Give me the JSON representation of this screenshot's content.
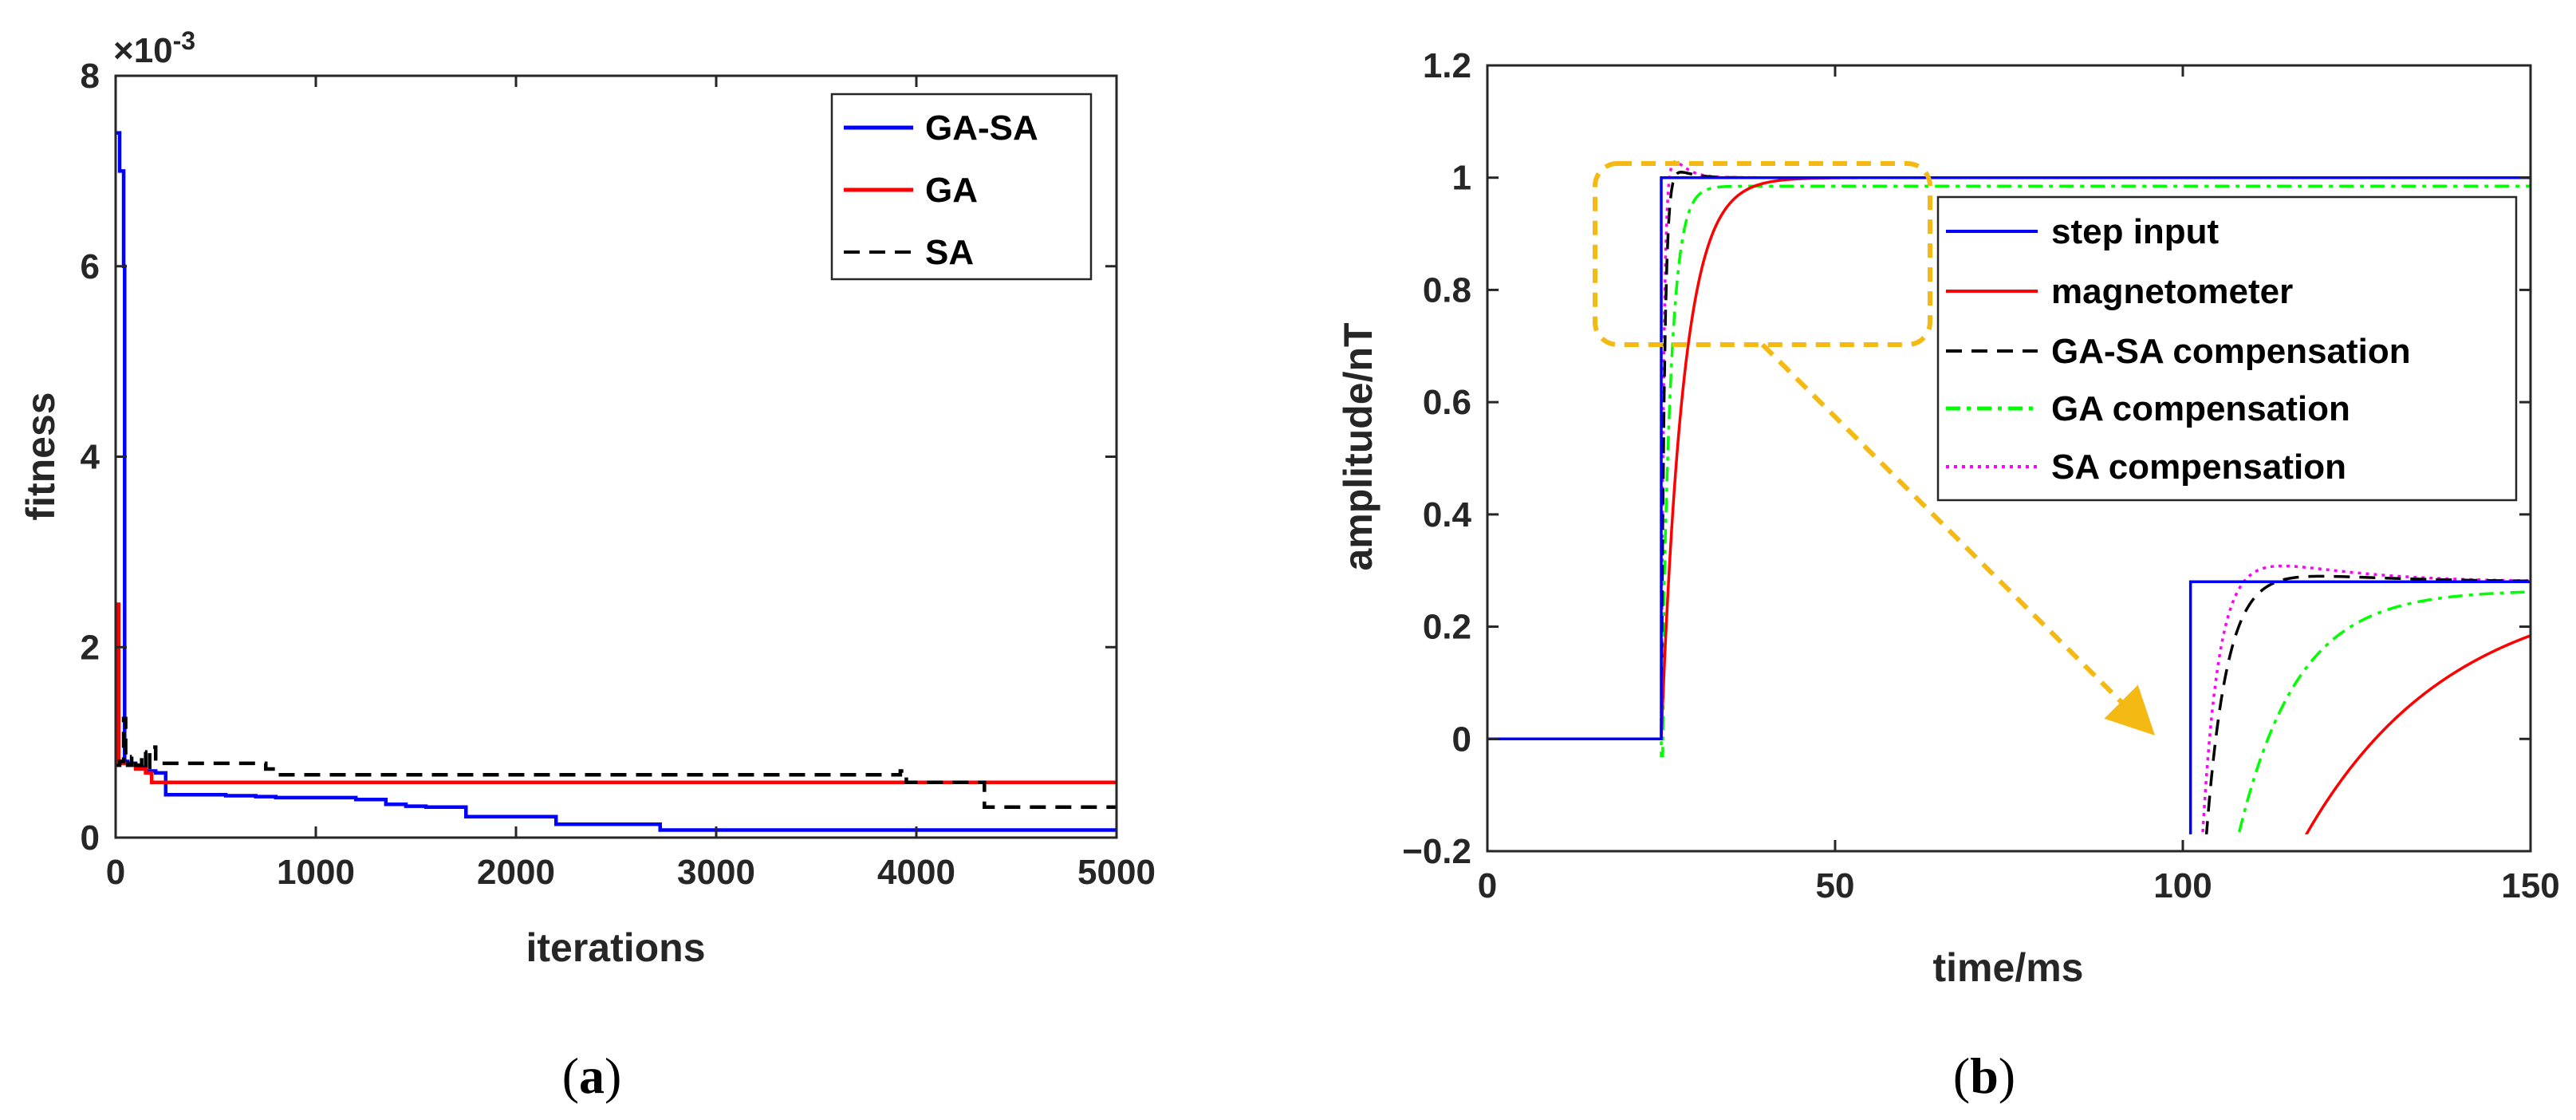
{
  "colors": {
    "blue": "#0000ff",
    "red": "#ff0000",
    "black": "#000000",
    "green": "#00ff00",
    "magenta": "#ff00ff",
    "highlight": "#f5b914",
    "axis": "#262626"
  },
  "chart_data": [
    {
      "id": "a",
      "type": "line",
      "caption_open": "(",
      "caption_letter": "a",
      "caption_close": ")",
      "title": "",
      "xlabel": "iterations",
      "ylabel": "fitness",
      "xlim": [
        0,
        5000
      ],
      "ylim": [
        0,
        8
      ],
      "exponent_label": "×10",
      "exponent_power": "-3",
      "xticks": [
        0,
        1000,
        2000,
        3000,
        4000,
        5000
      ],
      "xtick_labels": [
        "0",
        "1000",
        "2000",
        "3000",
        "4000",
        "5000"
      ],
      "yticks": [
        0,
        2,
        4,
        6,
        8
      ],
      "ytick_labels": [
        "0",
        "2",
        "4",
        "6",
        "8"
      ],
      "legend_position": "top-right",
      "series": [
        {
          "name": "GA-SA",
          "color": "blue",
          "style": "solid",
          "x": [
            0,
            20,
            40,
            45,
            60,
            100,
            150,
            200,
            240,
            250,
            400,
            550,
            700,
            800,
            1000,
            1200,
            1300,
            1350,
            1450,
            1550,
            1700,
            1750,
            2000,
            2150,
            2200,
            2500,
            2700,
            2720,
            3500,
            4000,
            4500,
            5000
          ],
          "y": [
            7.4,
            7.0,
            6.0,
            0.8,
            0.78,
            0.74,
            0.7,
            0.68,
            0.68,
            0.45,
            0.45,
            0.44,
            0.43,
            0.42,
            0.42,
            0.4,
            0.4,
            0.35,
            0.33,
            0.32,
            0.32,
            0.22,
            0.22,
            0.22,
            0.14,
            0.14,
            0.14,
            0.08,
            0.08,
            0.08,
            0.08,
            0.08
          ]
        },
        {
          "name": "GA",
          "color": "red",
          "style": "solid",
          "x": [
            0,
            10,
            15,
            30,
            60,
            100,
            150,
            180,
            250,
            500,
            1000,
            2000,
            3000,
            4000,
            5000
          ],
          "y": [
            2.45,
            2.45,
            0.8,
            0.78,
            0.76,
            0.72,
            0.68,
            0.58,
            0.58,
            0.58,
            0.58,
            0.58,
            0.58,
            0.58,
            0.58
          ]
        },
        {
          "name": "SA",
          "color": "black",
          "style": "dashed",
          "x": [
            0,
            20,
            40,
            50,
            60,
            80,
            100,
            130,
            150,
            170,
            200,
            400,
            700,
            750,
            800,
            900,
            1200,
            2000,
            3000,
            3900,
            3920,
            3950,
            4320,
            4340,
            4500,
            5000
          ],
          "y": [
            0.76,
            0.8,
            1.25,
            0.78,
            0.76,
            0.85,
            0.76,
            0.9,
            0.7,
            0.95,
            0.78,
            0.78,
            0.78,
            0.72,
            0.66,
            0.66,
            0.66,
            0.66,
            0.66,
            0.66,
            0.7,
            0.58,
            0.58,
            0.32,
            0.32,
            0.32
          ]
        }
      ]
    },
    {
      "id": "b",
      "type": "line",
      "caption_open": "(",
      "caption_letter": "b",
      "caption_close": ")",
      "title": "",
      "xlabel": "time/ms",
      "ylabel": "amplitude/nT",
      "xlim": [
        0,
        150
      ],
      "ylim": [
        -0.2,
        1.2
      ],
      "xticks": [
        0,
        50,
        100,
        150
      ],
      "xtick_labels": [
        "0",
        "50",
        "100",
        "150"
      ],
      "yticks": [
        -0.2,
        0,
        0.2,
        0.4,
        0.6,
        0.8,
        1.0,
        1.2
      ],
      "ytick_labels": [
        "−0.2",
        "0",
        "0.2",
        "0.4",
        "0.6",
        "0.8",
        "1",
        "1.2"
      ],
      "legend_position": "upper-right",
      "step_time": 25,
      "annotation": {
        "kind": "zoom-inset",
        "highlight_region_x": [
          15,
          64
        ],
        "highlight_region_y": [
          0.7,
          1.08
        ],
        "arrow_from": [
          40,
          0.7
        ],
        "arrow_to": [
          97,
          0.02
        ],
        "inset_x": [
          98.5,
          150
        ],
        "inset_y": [
          -0.17,
          0.34
        ]
      },
      "series": [
        {
          "name": "step input",
          "color": "blue",
          "style": "solid",
          "model": "step",
          "x": [
            0,
            25,
            25,
            150
          ],
          "y": [
            0,
            0,
            1,
            1
          ]
        },
        {
          "name": "magnetometer",
          "color": "red",
          "style": "solid",
          "model": "first-order",
          "tau": 3.2
        },
        {
          "name": "GA-SA compensation",
          "color": "black",
          "style": "dashed",
          "model": "overshoot",
          "tau": 0.45,
          "overshoot": 0.015,
          "decay": 1.5
        },
        {
          "name": "GA compensation",
          "color": "green",
          "style": "dashdot",
          "model": "first-order",
          "tau": 1.3,
          "final": 0.985,
          "undershoot": -0.03
        },
        {
          "name": "SA compensation",
          "color": "magenta",
          "style": "dotted",
          "model": "overshoot",
          "tau": 0.35,
          "overshoot": 0.035,
          "decay": 1.3
        }
      ]
    }
  ]
}
